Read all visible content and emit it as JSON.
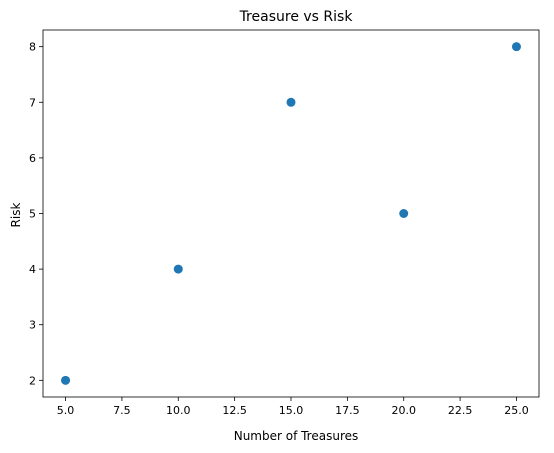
{
  "chart_data": {
    "type": "scatter",
    "title": "Treasure vs Risk",
    "xlabel": "Number of Treasures",
    "ylabel": "Risk",
    "x": [
      5,
      10,
      15,
      20,
      25
    ],
    "y": [
      2,
      4,
      7,
      5,
      8
    ],
    "xlim": [
      4.0,
      26.0
    ],
    "ylim": [
      1.7,
      8.3
    ],
    "xticks": [
      5.0,
      7.5,
      10.0,
      12.5,
      15.0,
      17.5,
      20.0,
      22.5,
      25.0
    ],
    "xtick_labels": [
      "5.0",
      "7.5",
      "10.0",
      "12.5",
      "15.0",
      "17.5",
      "20.0",
      "22.5",
      "25.0"
    ],
    "yticks": [
      2,
      3,
      4,
      5,
      6,
      7,
      8
    ],
    "ytick_labels": [
      "2",
      "3",
      "4",
      "5",
      "6",
      "7",
      "8"
    ],
    "grid": false,
    "marker_color": "#1f77b4"
  }
}
